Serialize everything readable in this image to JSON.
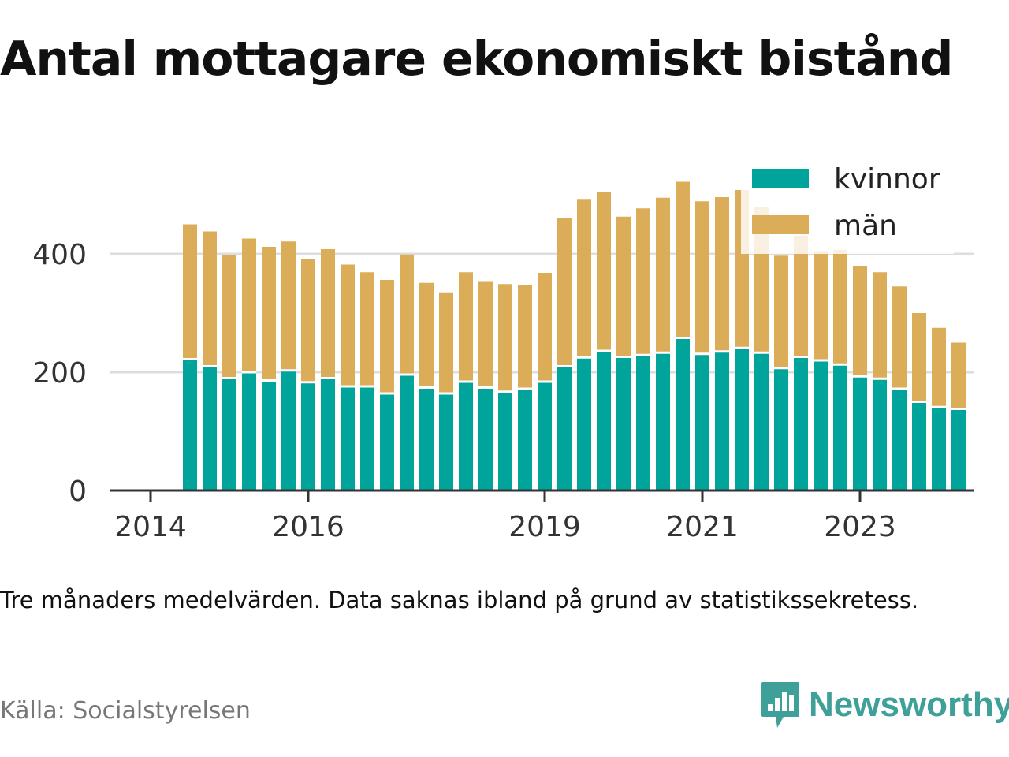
{
  "title": "Antal mottagare ekonomiskt bistånd",
  "subtitle": "Tre månaders medelvärden. Data saknas ibland på grund av statistikssekretess.",
  "source": "Källa: Socialstyrelsen",
  "brand": {
    "name": "Newsworthy",
    "icon": "newsworthy-logo-icon",
    "color": "#3ea098"
  },
  "colors": {
    "kvinnor": "#00a49a",
    "man": "#dcad59",
    "grid": "#dddddd",
    "axis": "#333333"
  },
  "chart_data": {
    "type": "bar",
    "stacked": true,
    "title": "Antal mottagare ekonomiskt bistånd",
    "xlabel": "",
    "ylabel": "",
    "ylim": [
      0,
      520
    ],
    "yticks": [
      0,
      200,
      400
    ],
    "grid": true,
    "legend_position": "top-right",
    "xticks": [
      "2014",
      "2016",
      "2019",
      "2021",
      "2023"
    ],
    "x": [
      2014.5,
      2014.75,
      2015.0,
      2015.25,
      2015.5,
      2015.75,
      2016.0,
      2016.25,
      2016.5,
      2016.75,
      2017.0,
      2017.25,
      2017.5,
      2017.75,
      2018.0,
      2018.25,
      2018.5,
      2018.75,
      2019.0,
      2019.25,
      2019.5,
      2019.75,
      2020.0,
      2020.25,
      2020.5,
      2020.75,
      2021.0,
      2021.25,
      2021.5,
      2021.75,
      2022.0,
      2022.25,
      2022.5,
      2022.75,
      2023.0,
      2023.25,
      2023.5,
      2023.75,
      2024.0,
      2024.25
    ],
    "series": [
      {
        "name": "kvinnor",
        "values": [
          222,
          210,
          190,
          200,
          186,
          203,
          183,
          190,
          176,
          176,
          164,
          196,
          174,
          164,
          184,
          174,
          167,
          172,
          184,
          210,
          225,
          236,
          226,
          229,
          233,
          258,
          231,
          235,
          241,
          233,
          207,
          226,
          220,
          213,
          193,
          189,
          172,
          150,
          141,
          138
        ]
      },
      {
        "name": "män",
        "values": [
          228,
          228,
          208,
          226,
          226,
          218,
          209,
          218,
          206,
          193,
          192,
          203,
          177,
          171,
          185,
          180,
          182,
          176,
          184,
          251,
          268,
          268,
          237,
          248,
          262,
          264,
          258,
          261,
          267,
          246,
          190,
          205,
          185,
          194,
          187,
          180,
          173,
          150,
          134,
          112
        ]
      }
    ]
  }
}
